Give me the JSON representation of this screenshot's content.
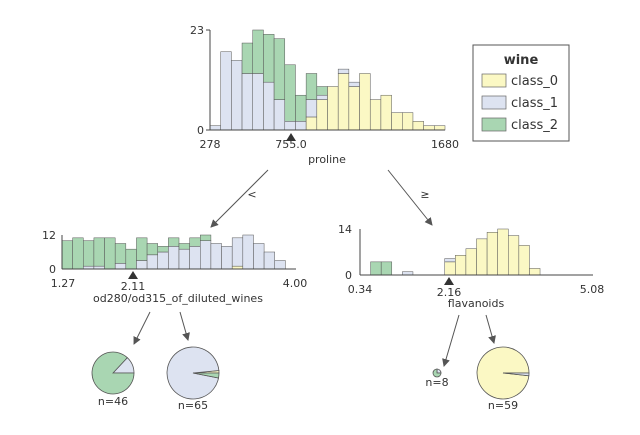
{
  "colors": {
    "class_0": "#fbf8c4",
    "class_1": "#dde3f1",
    "class_2": "#a9d6b2",
    "edge": "#555555",
    "axis": "#444444",
    "arrow": "#555555"
  },
  "legend": {
    "title": "wine",
    "items": [
      {
        "label": "class_0",
        "color": "#fbf8c4"
      },
      {
        "label": "class_1",
        "color": "#dde3f1"
      },
      {
        "label": "class_2",
        "color": "#a9d6b2"
      }
    ]
  },
  "edges": {
    "left_label": "<",
    "right_label": "≥"
  },
  "chart_data": [
    {
      "type": "stacked-histogram",
      "id": "root",
      "feature": "proline",
      "xlim": [
        278,
        1680
      ],
      "ylim": [
        0,
        23
      ],
      "split": 755.0,
      "tick_labels": {
        "xmin": "278",
        "split": "755.0",
        "xmax": "1680",
        "ytop": "23",
        "ybot": "0"
      },
      "series": [
        {
          "name": "class_0",
          "values": [
            0,
            0,
            0,
            0,
            0,
            0,
            0,
            0,
            0,
            3,
            7,
            10,
            13,
            10,
            13,
            7,
            8,
            4,
            4,
            2,
            1,
            1
          ]
        },
        {
          "name": "class_1",
          "values": [
            1,
            18,
            16,
            13,
            13,
            11,
            7,
            2,
            2,
            4,
            1,
            0,
            1,
            1,
            0,
            0,
            0,
            0,
            0,
            0,
            0,
            0
          ]
        },
        {
          "name": "class_2",
          "values": [
            0,
            0,
            0,
            7,
            10,
            11,
            14,
            13,
            6,
            6,
            2,
            0,
            0,
            0,
            0,
            0,
            0,
            0,
            0,
            0,
            0,
            0
          ]
        }
      ]
    },
    {
      "type": "stacked-histogram",
      "id": "left",
      "feature": "od280/od315_of_diluted_wines",
      "xlim": [
        1.27,
        4.0
      ],
      "ylim": [
        0,
        12
      ],
      "split": 2.11,
      "tick_labels": {
        "xmin": "1.27",
        "split": "2.11",
        "xmax": "4.00",
        "ytop": "12",
        "ybot": "0"
      },
      "series": [
        {
          "name": "class_0",
          "values": [
            0,
            0,
            0,
            0,
            0,
            0,
            0,
            0,
            0,
            0,
            0,
            0,
            0,
            0,
            0,
            0,
            1,
            0,
            0,
            0,
            0,
            0
          ]
        },
        {
          "name": "class_1",
          "values": [
            0,
            0,
            1,
            1,
            0,
            2,
            0,
            3,
            5,
            6,
            8,
            7,
            8,
            10,
            9,
            8,
            10,
            12,
            9,
            6,
            3,
            0
          ]
        },
        {
          "name": "class_2",
          "values": [
            10,
            11,
            9,
            10,
            11,
            7,
            7,
            8,
            4,
            2,
            3,
            2,
            3,
            2,
            0,
            0,
            0,
            0,
            0,
            0,
            0,
            0
          ]
        }
      ]
    },
    {
      "type": "stacked-histogram",
      "id": "right",
      "feature": "flavanoids",
      "xlim": [
        0.34,
        5.08
      ],
      "ylim": [
        0,
        14
      ],
      "split": 2.16,
      "tick_labels": {
        "xmin": "0.34",
        "split": "2.16",
        "xmax": "5.08",
        "ytop": "14",
        "ybot": "0"
      },
      "series": [
        {
          "name": "class_0",
          "values": [
            0,
            0,
            0,
            0,
            0,
            0,
            0,
            0,
            4,
            6,
            8,
            11,
            13,
            14,
            12,
            9,
            2,
            0,
            0,
            0,
            0,
            0
          ]
        },
        {
          "name": "class_1",
          "values": [
            0,
            0,
            0,
            0,
            1,
            0,
            0,
            0,
            1,
            0,
            0,
            0,
            0,
            0,
            0,
            0,
            0,
            0,
            0,
            0,
            0,
            0
          ]
        },
        {
          "name": "class_2",
          "values": [
            0,
            4,
            4,
            0,
            0,
            0,
            0,
            0,
            0,
            0,
            0,
            0,
            0,
            0,
            0,
            0,
            0,
            0,
            0,
            0,
            0,
            0
          ]
        }
      ]
    },
    {
      "type": "pie",
      "id": "leaf-1",
      "label": "n=46",
      "slices": [
        {
          "name": "class_0",
          "value": 0
        },
        {
          "name": "class_1",
          "value": 6
        },
        {
          "name": "class_2",
          "value": 40
        }
      ]
    },
    {
      "type": "pie",
      "id": "leaf-2",
      "label": "n=65",
      "slices": [
        {
          "name": "class_0",
          "value": 1
        },
        {
          "name": "class_1",
          "value": 62
        },
        {
          "name": "class_2",
          "value": 2
        }
      ]
    },
    {
      "type": "pie",
      "id": "leaf-3",
      "label": "n=8",
      "slices": [
        {
          "name": "class_0",
          "value": 0
        },
        {
          "name": "class_1",
          "value": 2
        },
        {
          "name": "class_2",
          "value": 6
        }
      ]
    },
    {
      "type": "pie",
      "id": "leaf-4",
      "label": "n=59",
      "slices": [
        {
          "name": "class_0",
          "value": 58
        },
        {
          "name": "class_1",
          "value": 1
        },
        {
          "name": "class_2",
          "value": 0
        }
      ]
    }
  ]
}
